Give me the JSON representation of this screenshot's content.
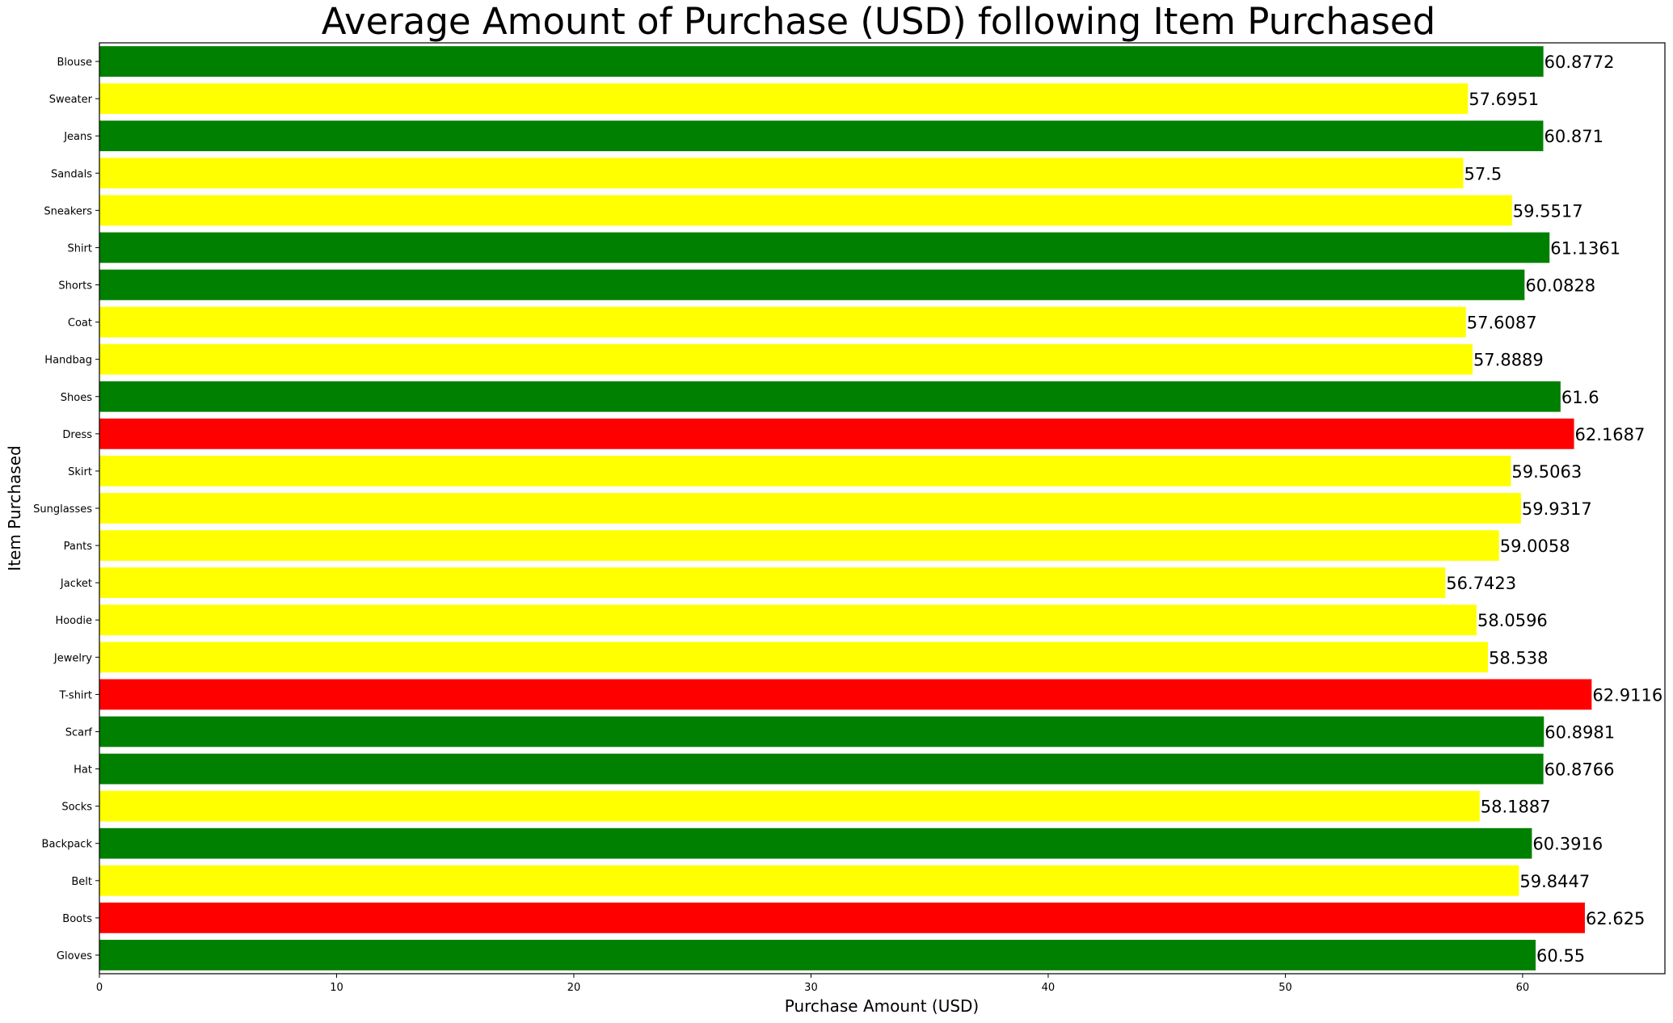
{
  "chart_data": {
    "type": "bar",
    "orientation": "horizontal",
    "title": "Average Amount of Purchase (USD) following Item Purchased",
    "xlabel": "Purchase Amount (USD)",
    "ylabel": "Item Purchased",
    "xlim": [
      0,
      66
    ],
    "xticks": [
      0,
      10,
      20,
      30,
      40,
      50,
      60
    ],
    "xtick_labels": [
      "0",
      "10",
      "20",
      "30",
      "40",
      "50",
      "60"
    ],
    "grid": false,
    "categories": [
      "Blouse",
      "Sweater",
      "Jeans",
      "Sandals",
      "Sneakers",
      "Shirt",
      "Shorts",
      "Coat",
      "Handbag",
      "Shoes",
      "Dress",
      "Skirt",
      "Sunglasses",
      "Pants",
      "Jacket",
      "Hoodie",
      "Jewelry",
      "T-shirt",
      "Scarf",
      "Hat",
      "Socks",
      "Backpack",
      "Belt",
      "Boots",
      "Gloves"
    ],
    "values": [
      60.8772,
      57.6951,
      60.871,
      57.5,
      59.5517,
      61.1361,
      60.0828,
      57.6087,
      57.8889,
      61.6,
      62.1687,
      59.5063,
      59.9317,
      59.0058,
      56.7423,
      58.0596,
      58.538,
      62.9116,
      60.8981,
      60.8766,
      58.1887,
      60.3916,
      59.8447,
      62.625,
      60.55
    ],
    "value_labels": [
      "60.8772",
      "57.6951",
      "60.871",
      "57.5",
      "59.5517",
      "61.1361",
      "60.0828",
      "57.6087",
      "57.8889",
      "61.6",
      "62.1687",
      "59.5063",
      "59.9317",
      "59.0058",
      "56.7423",
      "58.0596",
      "58.538",
      "62.9116",
      "60.8981",
      "60.8766",
      "58.1887",
      "60.3916",
      "59.8447",
      "62.625",
      "60.55"
    ],
    "bar_colors": [
      "#008000",
      "#ffff00",
      "#008000",
      "#ffff00",
      "#ffff00",
      "#008000",
      "#008000",
      "#ffff00",
      "#ffff00",
      "#008000",
      "#ff0000",
      "#ffff00",
      "#ffff00",
      "#ffff00",
      "#ffff00",
      "#ffff00",
      "#ffff00",
      "#ff0000",
      "#008000",
      "#008000",
      "#ffff00",
      "#008000",
      "#ffff00",
      "#ff0000",
      "#008000"
    ]
  }
}
